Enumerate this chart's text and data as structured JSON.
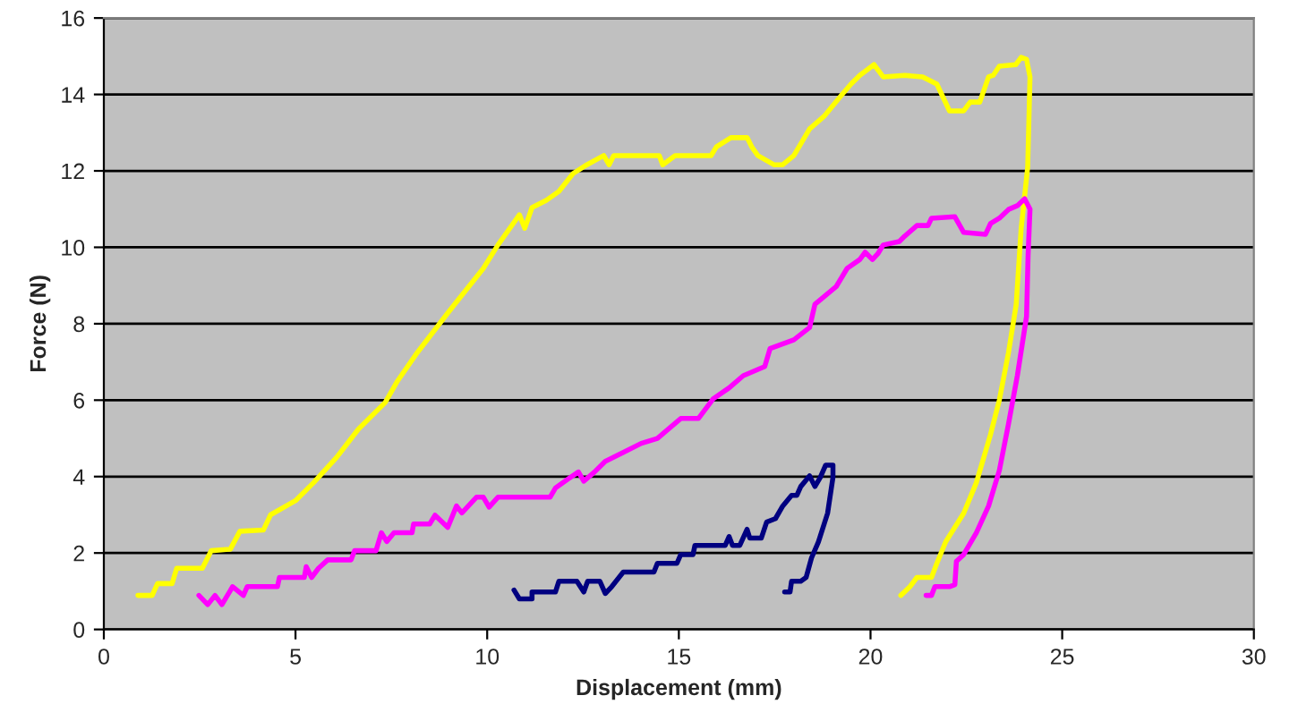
{
  "chart_data": {
    "type": "line",
    "xlabel": "Displacement (mm)",
    "ylabel": "Force (N)",
    "xlim": [
      0,
      30
    ],
    "xticks": [
      0,
      5,
      10,
      15,
      20,
      25,
      30
    ],
    "ylim": [
      0,
      16
    ],
    "yticks": [
      0,
      2,
      4,
      6,
      8,
      10,
      12,
      14,
      16
    ],
    "grid": "y",
    "legend": false,
    "marker": "none",
    "line_style": "solid",
    "series": [
      {
        "color": "#ffff00",
        "x": [
          0.89,
          1.26,
          1.4,
          1.78,
          1.9,
          2.57,
          2.8,
          3.3,
          3.55,
          4.16,
          4.35,
          5.0,
          5.47,
          6.07,
          6.64,
          7.34,
          7.66,
          8.18,
          8.97,
          9.9,
          10.28,
          10.84,
          10.98,
          11.17,
          11.54,
          11.87,
          12.24,
          12.6,
          13.04,
          13.18,
          13.3,
          14.49,
          14.58,
          14.9,
          15.19,
          15.84,
          15.98,
          16.36,
          16.78,
          16.9,
          17.06,
          17.48,
          17.71,
          18.0,
          18.41,
          18.79,
          19.25,
          19.49,
          19.72,
          20.09,
          20.33,
          20.89,
          21.36,
          21.73,
          22.06,
          22.43,
          22.6,
          22.85,
          23.08,
          23.2,
          23.36,
          23.79,
          23.93,
          24.07,
          24.16,
          24.1,
          23.93,
          23.8,
          23.6,
          23.36,
          23.13,
          22.76,
          22.43,
          21.96,
          21.73,
          21.59,
          21.21,
          21.03,
          20.79
        ],
        "values": [
          0.89,
          0.89,
          1.2,
          1.2,
          1.6,
          1.6,
          2.06,
          2.1,
          2.57,
          2.6,
          3.0,
          3.37,
          3.84,
          4.5,
          5.24,
          5.94,
          6.5,
          7.25,
          8.28,
          9.45,
          10.06,
          10.85,
          10.5,
          11.04,
          11.23,
          11.46,
          11.93,
          12.16,
          12.4,
          12.16,
          12.4,
          12.4,
          12.16,
          12.4,
          12.4,
          12.4,
          12.63,
          12.87,
          12.87,
          12.63,
          12.4,
          12.16,
          12.16,
          12.4,
          13.1,
          13.43,
          13.99,
          14.27,
          14.5,
          14.78,
          14.46,
          14.5,
          14.46,
          14.27,
          13.57,
          13.57,
          13.8,
          13.8,
          14.46,
          14.5,
          14.74,
          14.78,
          14.97,
          14.92,
          14.46,
          12.1,
          10.5,
          8.5,
          7.25,
          6.0,
          5.1,
          3.84,
          3.04,
          2.29,
          1.73,
          1.36,
          1.36,
          1.12,
          0.89
        ]
      },
      {
        "color": "#ff00ff",
        "x": [
          2.48,
          2.71,
          2.9,
          3.08,
          3.36,
          3.64,
          3.74,
          4.53,
          4.58,
          5.23,
          5.28,
          5.42,
          5.6,
          5.84,
          6.45,
          6.54,
          7.1,
          7.24,
          7.38,
          7.57,
          8.04,
          8.08,
          8.5,
          8.64,
          8.97,
          9.2,
          9.34,
          9.72,
          9.9,
          10.05,
          10.28,
          11.64,
          11.78,
          12.1,
          12.38,
          12.52,
          12.8,
          13.08,
          13.55,
          14.02,
          14.44,
          14.72,
          15.05,
          15.51,
          15.89,
          16.31,
          16.68,
          17.24,
          17.38,
          18.0,
          18.41,
          18.55,
          19.11,
          19.39,
          19.72,
          19.86,
          20.05,
          20.19,
          20.33,
          20.75,
          20.89,
          21.21,
          21.5,
          21.59,
          22.2,
          22.43,
          23.0,
          23.13,
          23.36,
          23.6,
          23.83,
          24.02,
          24.16,
          24.11,
          24.07,
          23.83,
          23.6,
          23.36,
          23.08,
          22.76,
          22.43,
          22.24,
          22.2,
          22.06,
          21.68,
          21.59,
          21.45
        ],
        "values": [
          0.89,
          0.65,
          0.89,
          0.65,
          1.12,
          0.89,
          1.12,
          1.12,
          1.36,
          1.36,
          1.64,
          1.36,
          1.6,
          1.82,
          1.82,
          2.06,
          2.06,
          2.53,
          2.3,
          2.53,
          2.53,
          2.76,
          2.76,
          2.99,
          2.67,
          3.23,
          3.05,
          3.46,
          3.46,
          3.2,
          3.46,
          3.46,
          3.7,
          3.93,
          4.12,
          3.88,
          4.12,
          4.4,
          4.63,
          4.87,
          5.0,
          5.24,
          5.52,
          5.52,
          6.03,
          6.32,
          6.64,
          6.88,
          7.35,
          7.58,
          7.9,
          8.51,
          8.98,
          9.45,
          9.68,
          9.87,
          9.68,
          9.83,
          10.06,
          10.15,
          10.29,
          10.57,
          10.57,
          10.76,
          10.8,
          10.39,
          10.34,
          10.62,
          10.76,
          10.99,
          11.09,
          11.27,
          11.0,
          9.78,
          8.19,
          6.64,
          5.38,
          4.16,
          3.23,
          2.53,
          1.96,
          1.78,
          1.17,
          1.12,
          1.12,
          0.89,
          0.89
        ]
      },
      {
        "color": "#000080",
        "x": [
          10.7,
          10.84,
          11.17,
          11.17,
          11.78,
          11.87,
          12.34,
          12.52,
          12.62,
          12.94,
          13.08,
          13.25,
          13.55,
          14.35,
          14.44,
          14.95,
          15.05,
          15.37,
          15.42,
          16.21,
          16.31,
          16.4,
          16.59,
          16.78,
          16.85,
          17.15,
          17.29,
          17.52,
          17.71,
          17.94,
          18.08,
          18.18,
          18.41,
          18.55,
          18.69,
          18.83,
          19.02,
          19.02,
          18.88,
          18.64,
          18.46,
          18.32,
          18.18,
          17.94,
          17.9,
          17.76
        ],
        "values": [
          1.03,
          0.8,
          0.8,
          0.98,
          0.98,
          1.26,
          1.26,
          0.98,
          1.26,
          1.26,
          0.94,
          1.12,
          1.5,
          1.5,
          1.73,
          1.73,
          1.96,
          1.96,
          2.2,
          2.2,
          2.43,
          2.2,
          2.2,
          2.62,
          2.39,
          2.39,
          2.81,
          2.9,
          3.23,
          3.51,
          3.51,
          3.74,
          4.02,
          3.74,
          3.98,
          4.3,
          4.3,
          3.98,
          3.04,
          2.29,
          1.87,
          1.36,
          1.26,
          1.26,
          0.98,
          0.98
        ]
      }
    ]
  }
}
